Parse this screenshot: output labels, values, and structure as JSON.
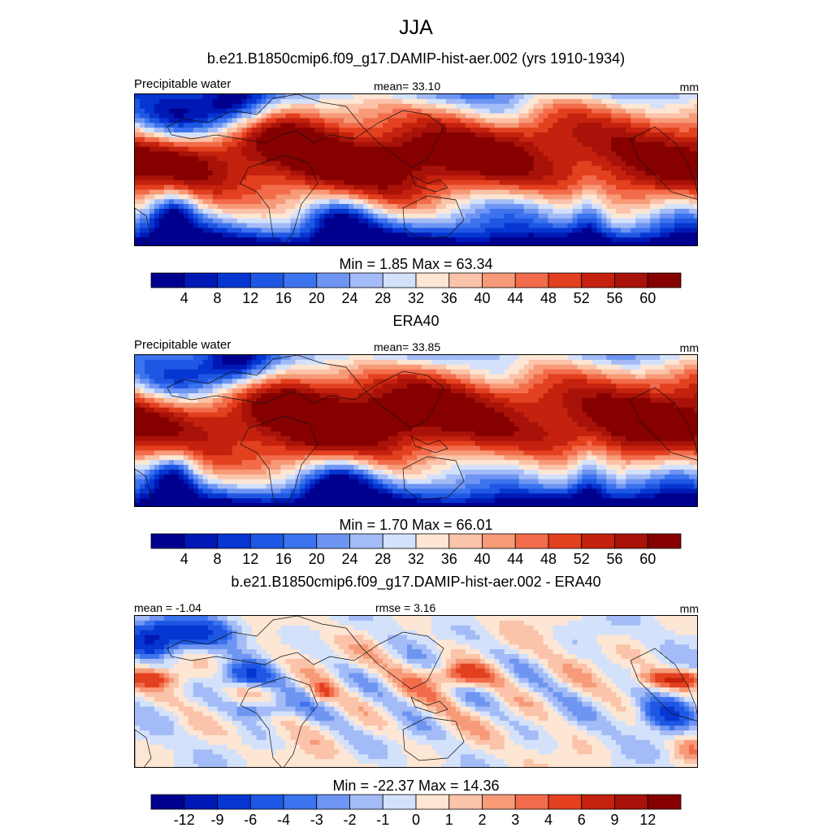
{
  "title": "JJA",
  "case_title": "b.e21.B1850cmip6.f09_g17.DAMIP-hist-aer.002 (yrs 1910-1934)",
  "chart_data": [
    {
      "type": "heatmap",
      "panel_title": "",
      "left_label": "Precipitable water",
      "mid_label": "mean=  33.10",
      "right_label": "mm",
      "minmax_label": "Min =   1.85 Max =  63.34",
      "stats": {
        "mean": 33.1,
        "min": 1.85,
        "max": 63.34
      },
      "colorbar": {
        "levels": [
          4,
          8,
          12,
          16,
          20,
          24,
          28,
          32,
          36,
          40,
          44,
          48,
          52,
          56,
          60
        ],
        "tick_labels": [
          "4",
          "8",
          "12",
          "16",
          "20",
          "24",
          "28",
          "32",
          "36",
          "40",
          "44",
          "48",
          "52",
          "56",
          "60"
        ]
      },
      "units": "mm"
    },
    {
      "type": "heatmap",
      "panel_title": "ERA40",
      "left_label": "Precipitable water",
      "mid_label": "mean=  33.85",
      "right_label": "mm",
      "minmax_label": "Min =   1.70 Max =  66.01",
      "stats": {
        "mean": 33.85,
        "min": 1.7,
        "max": 66.01
      },
      "colorbar": {
        "levels": [
          4,
          8,
          12,
          16,
          20,
          24,
          28,
          32,
          36,
          40,
          44,
          48,
          52,
          56,
          60
        ],
        "tick_labels": [
          "4",
          "8",
          "12",
          "16",
          "20",
          "24",
          "28",
          "32",
          "36",
          "40",
          "44",
          "48",
          "52",
          "56",
          "60"
        ]
      },
      "units": "mm"
    },
    {
      "type": "heatmap",
      "panel_title": "b.e21.B1850cmip6.f09_g17.DAMIP-hist-aer.002 - ERA40",
      "left_label": "mean =  -1.04",
      "mid_label": "rmse =   3.16",
      "right_label": "mm",
      "minmax_label": "Min = -22.37 Max =  14.36",
      "stats": {
        "mean": -1.04,
        "rmse": 3.16,
        "min": -22.37,
        "max": 14.36
      },
      "colorbar": {
        "levels": [
          -12,
          -9,
          -6,
          -4,
          -3,
          -2,
          -1,
          0,
          1,
          2,
          3,
          4,
          6,
          9,
          12
        ],
        "tick_labels": [
          "-12",
          "-9",
          "-6",
          "-4",
          "-3",
          "-2",
          "-1",
          "0",
          "1",
          "2",
          "3",
          "4",
          "6",
          "9",
          "12"
        ]
      },
      "units": "mm"
    }
  ],
  "colors": {
    "palette": [
      "#00008f",
      "#0019b5",
      "#0636d1",
      "#1e57e3",
      "#3c73ee",
      "#6e95f2",
      "#a3bbf6",
      "#d3e1fb",
      "#fde6d3",
      "#fbc3a9",
      "#f79a78",
      "#f26c4b",
      "#e3401f",
      "#c4210e",
      "#a81208",
      "#860000"
    ]
  }
}
